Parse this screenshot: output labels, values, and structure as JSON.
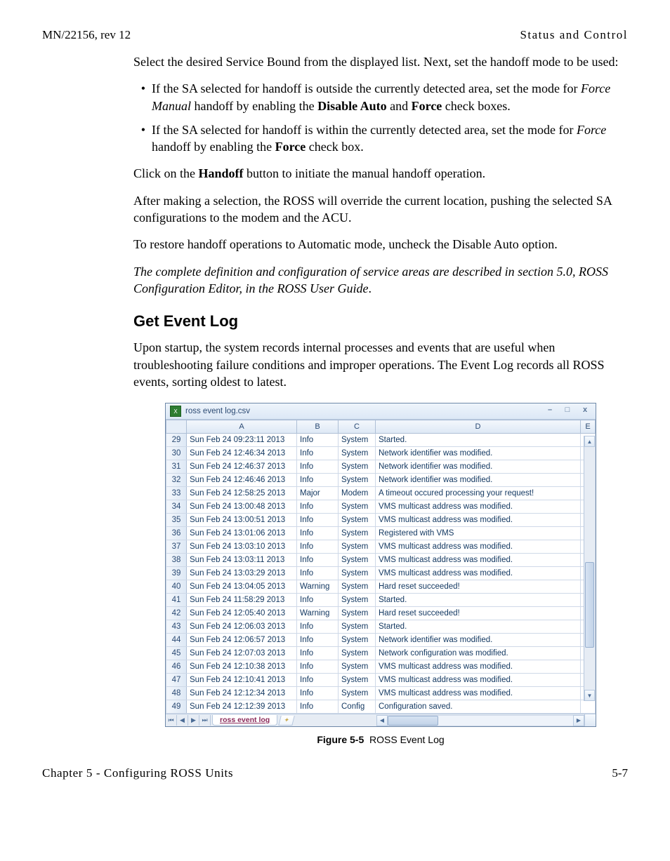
{
  "header": {
    "left": "MN/22156, rev 12",
    "right": "Status and Control"
  },
  "para1": "Select the desired Service Bound from the displayed list. Next, set the handoff mode to be used:",
  "bullet1_a": "If the SA selected for handoff is outside the currently detected area, set the mode for ",
  "bullet1_b_italic": "Force Manual",
  "bullet1_c": " handoff by enabling the ",
  "bullet1_d_bold": "Disable Auto",
  "bullet1_e": " and ",
  "bullet1_f_bold": "Force",
  "bullet1_g": " check boxes.",
  "bullet2_a": "If the SA selected for handoff is within the currently detected area, set the mode for ",
  "bullet2_b_italic": "Force",
  "bullet2_c": " handoff by enabling the ",
  "bullet2_d_bold": "Force",
  "bullet2_e": " check box.",
  "para2_a": "Click on the ",
  "para2_b_bold": "Handoff",
  "para2_c": " button to initiate the manual handoff operation.",
  "para3": "After making a selection, the ROSS will override the current location, pushing the selected SA configurations to the modem and the ACU.",
  "para4": "To restore handoff operations to Automatic mode, uncheck the Disable Auto option.",
  "para5_italic": "The complete definition and configuration of service areas are described in section 5.0, ROSS Configuration Editor, in the ROSS User Guide",
  "para5_end": ".",
  "section_heading": "Get Event Log",
  "para6": "Upon startup, the system records internal processes and events that are useful when troubleshooting failure conditions and improper operations. The Event Log records all ROSS events, sorting oldest to latest.",
  "spreadsheet": {
    "window_title": "ross event log.csv",
    "columns": [
      "A",
      "B",
      "C",
      "D",
      "E"
    ],
    "sheet_tab": "ross event log",
    "rows": [
      {
        "n": "29",
        "a": "Sun Feb 24 09:23:11 2013",
        "b": "Info",
        "c": "System",
        "d": "Started."
      },
      {
        "n": "30",
        "a": "Sun Feb 24 12:46:34 2013",
        "b": "Info",
        "c": "System",
        "d": "Network identifier was modified."
      },
      {
        "n": "31",
        "a": "Sun Feb 24 12:46:37 2013",
        "b": "Info",
        "c": "System",
        "d": "Network identifier was modified."
      },
      {
        "n": "32",
        "a": "Sun Feb 24 12:46:46 2013",
        "b": "Info",
        "c": "System",
        "d": "Network identifier was modified."
      },
      {
        "n": "33",
        "a": "Sun Feb 24 12:58:25 2013",
        "b": "Major",
        "c": "Modem",
        "d": "A timeout occured processing your request!"
      },
      {
        "n": "34",
        "a": "Sun Feb 24 13:00:48 2013",
        "b": "Info",
        "c": "System",
        "d": "VMS multicast address was modified."
      },
      {
        "n": "35",
        "a": "Sun Feb 24 13:00:51 2013",
        "b": "Info",
        "c": "System",
        "d": "VMS multicast address was modified."
      },
      {
        "n": "36",
        "a": "Sun Feb 24 13:01:06 2013",
        "b": "Info",
        "c": "System",
        "d": "Registered with VMS"
      },
      {
        "n": "37",
        "a": "Sun Feb 24 13:03:10 2013",
        "b": "Info",
        "c": "System",
        "d": "VMS multicast address was modified."
      },
      {
        "n": "38",
        "a": "Sun Feb 24 13:03:11 2013",
        "b": "Info",
        "c": "System",
        "d": "VMS multicast address was modified."
      },
      {
        "n": "39",
        "a": "Sun Feb 24 13:03:29 2013",
        "b": "Info",
        "c": "System",
        "d": "VMS multicast address was modified."
      },
      {
        "n": "40",
        "a": "Sun Feb 24 13:04:05 2013",
        "b": "Warning",
        "c": "System",
        "d": "Hard reset succeeded!"
      },
      {
        "n": "41",
        "a": "Sun Feb 24 11:58:29 2013",
        "b": "Info",
        "c": "System",
        "d": "Started."
      },
      {
        "n": "42",
        "a": "Sun Feb 24 12:05:40 2013",
        "b": "Warning",
        "c": "System",
        "d": "Hard reset succeeded!"
      },
      {
        "n": "43",
        "a": "Sun Feb 24 12:06:03 2013",
        "b": "Info",
        "c": "System",
        "d": "Started."
      },
      {
        "n": "44",
        "a": "Sun Feb 24 12:06:57 2013",
        "b": "Info",
        "c": "System",
        "d": "Network identifier was modified."
      },
      {
        "n": "45",
        "a": "Sun Feb 24 12:07:03 2013",
        "b": "Info",
        "c": "System",
        "d": "Network configuration was modified."
      },
      {
        "n": "46",
        "a": "Sun Feb 24 12:10:38 2013",
        "b": "Info",
        "c": "System",
        "d": "VMS multicast address was modified."
      },
      {
        "n": "47",
        "a": "Sun Feb 24 12:10:41 2013",
        "b": "Info",
        "c": "System",
        "d": "VMS multicast address was modified."
      },
      {
        "n": "48",
        "a": "Sun Feb 24 12:12:34 2013",
        "b": "Info",
        "c": "System",
        "d": "VMS multicast address was modified."
      },
      {
        "n": "49",
        "a": "Sun Feb 24 12:12:39 2013",
        "b": "Info",
        "c": "Config",
        "d": "Configuration saved."
      }
    ]
  },
  "figure": {
    "num": "Figure 5-5",
    "caption": "ROSS Event Log"
  },
  "footer": {
    "left": "Chapter 5 - Configuring ROSS Units",
    "right": "5-7"
  }
}
